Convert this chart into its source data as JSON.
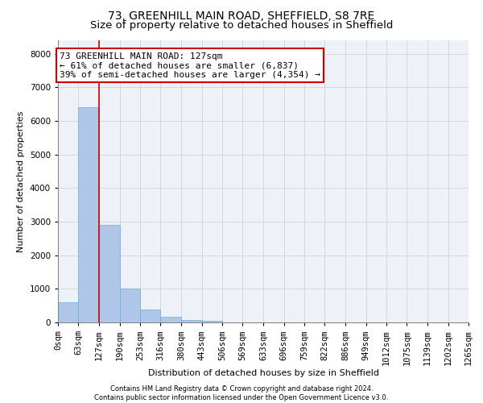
{
  "title1": "73, GREENHILL MAIN ROAD, SHEFFIELD, S8 7RE",
  "title2": "Size of property relative to detached houses in Sheffield",
  "xlabel": "Distribution of detached houses by size in Sheffield",
  "ylabel": "Number of detached properties",
  "footnote1": "Contains HM Land Registry data © Crown copyright and database right 2024.",
  "footnote2": "Contains public sector information licensed under the Open Government Licence v3.0.",
  "bin_edges": [
    0,
    63,
    127,
    190,
    253,
    316,
    380,
    443,
    506,
    569,
    633,
    696,
    759,
    822,
    886,
    949,
    1012,
    1075,
    1139,
    1202,
    1265
  ],
  "bin_labels": [
    "0sqm",
    "63sqm",
    "127sqm",
    "190sqm",
    "253sqm",
    "316sqm",
    "380sqm",
    "443sqm",
    "506sqm",
    "569sqm",
    "633sqm",
    "696sqm",
    "759sqm",
    "822sqm",
    "886sqm",
    "949sqm",
    "1012sqm",
    "1075sqm",
    "1139sqm",
    "1202sqm",
    "1265sqm"
  ],
  "bar_heights": [
    600,
    6400,
    2900,
    1000,
    380,
    170,
    80,
    40,
    0,
    0,
    0,
    0,
    0,
    0,
    0,
    0,
    0,
    0,
    0,
    0
  ],
  "bar_color": "#aec6e8",
  "bar_edgecolor": "#6aaed6",
  "property_size": 127,
  "property_line_color": "#cc0000",
  "annotation_line1": "73 GREENHILL MAIN ROAD: 127sqm",
  "annotation_line2": "← 61% of detached houses are smaller (6,837)",
  "annotation_line3": "39% of semi-detached houses are larger (4,354) →",
  "annotation_boxcolor": "white",
  "annotation_edgecolor": "#cc0000",
  "ylim": [
    0,
    8400
  ],
  "yticks": [
    0,
    1000,
    2000,
    3000,
    4000,
    5000,
    6000,
    7000,
    8000
  ],
  "grid_color": "#cccccc",
  "bg_color": "#eef2f8",
  "title1_fontsize": 10,
  "title2_fontsize": 9.5,
  "annotation_fontsize": 8,
  "axis_label_fontsize": 8,
  "tick_fontsize": 7.5,
  "footnote_fontsize": 6
}
